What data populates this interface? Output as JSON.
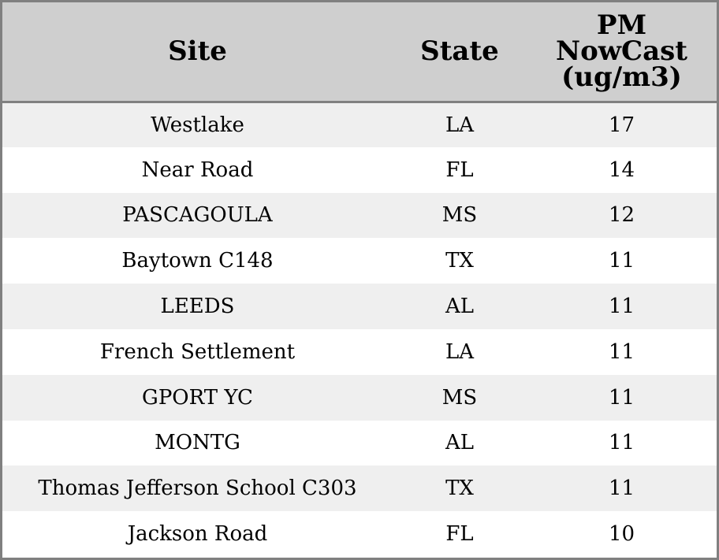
{
  "chart_data": {
    "type": "table",
    "columns": [
      "Site",
      "State",
      "PM NowCast (ug/m3)"
    ],
    "header": {
      "site": "Site",
      "state": "State",
      "pm_lines": [
        "PM",
        "NowCast",
        "(ug/m3)"
      ]
    },
    "rows": [
      {
        "site": "Westlake",
        "state": "LA",
        "pm": "17"
      },
      {
        "site": "Near Road",
        "state": "FL",
        "pm": "14"
      },
      {
        "site": "PASCAGOULA",
        "state": "MS",
        "pm": "12"
      },
      {
        "site": "Baytown C148",
        "state": "TX",
        "pm": "11"
      },
      {
        "site": "LEEDS",
        "state": "AL",
        "pm": "11"
      },
      {
        "site": "French Settlement",
        "state": "LA",
        "pm": "11"
      },
      {
        "site": "GPORT YC",
        "state": "MS",
        "pm": "11"
      },
      {
        "site": "MONTG",
        "state": "AL",
        "pm": "11"
      },
      {
        "site": "Thomas Jefferson School C303",
        "state": "TX",
        "pm": "11"
      },
      {
        "site": "Jackson Road",
        "state": "FL",
        "pm": "10"
      }
    ]
  },
  "colors": {
    "header_background": "#cfcfcf",
    "stripe_background": "#efefef",
    "border": "#808080"
  }
}
